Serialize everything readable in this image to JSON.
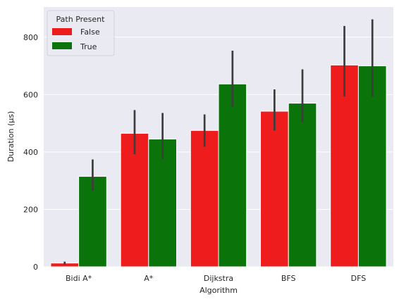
{
  "chart_data": {
    "type": "bar",
    "title": "",
    "xlabel": "Algorithm",
    "ylabel": "Duration (µs)",
    "categories": [
      "Bidi A*",
      "A*",
      "Dijkstra",
      "BFS",
      "DFS"
    ],
    "ylim": [
      0,
      905
    ],
    "yticks": [
      0,
      200,
      400,
      600,
      800
    ],
    "grid": true,
    "legend": {
      "title": "Path Present",
      "placement": "top-left"
    },
    "series": [
      {
        "name": "False",
        "color": "#ee1c1c",
        "values": [
          13,
          465,
          475,
          542,
          703
        ],
        "ci_low": [
          8,
          392,
          418,
          475,
          593
        ],
        "ci_high": [
          18,
          546,
          531,
          618,
          839
        ]
      },
      {
        "name": "True",
        "color": "#0a730a",
        "values": [
          315,
          445,
          637,
          570,
          700
        ],
        "ci_low": [
          266,
          375,
          557,
          505,
          593
        ],
        "ci_high": [
          374,
          536,
          753,
          688,
          862
        ]
      }
    ]
  }
}
